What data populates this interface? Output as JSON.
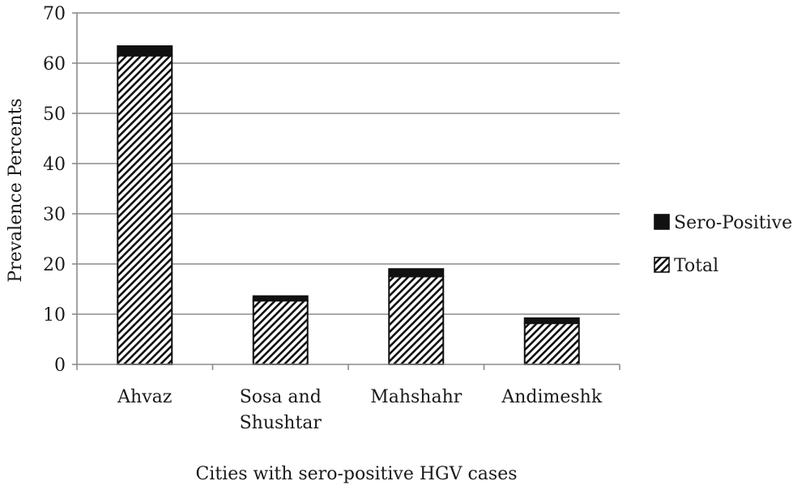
{
  "chart_data": {
    "type": "bar",
    "stacked": true,
    "categories": [
      [
        "Ahvaz"
      ],
      [
        "Sosa and",
        "Shushtar"
      ],
      [
        "Mahshahr"
      ],
      [
        "Andimeshk"
      ]
    ],
    "series": [
      {
        "name": "Total",
        "values": [
          61.5,
          12.7,
          17.5,
          8.2
        ],
        "pattern": "diagonal-hatch"
      },
      {
        "name": "Sero-Positive",
        "values": [
          1.9,
          0.9,
          1.5,
          1.0
        ],
        "color": "#111111"
      }
    ],
    "title": "",
    "xlabel": "Cities with sero-positive HGV cases",
    "ylabel": "Prevalence Percents",
    "ylim": [
      0,
      70
    ],
    "yticks": [
      0,
      10,
      20,
      30,
      40,
      50,
      60,
      70
    ],
    "grid": true,
    "legend_position": "right"
  }
}
